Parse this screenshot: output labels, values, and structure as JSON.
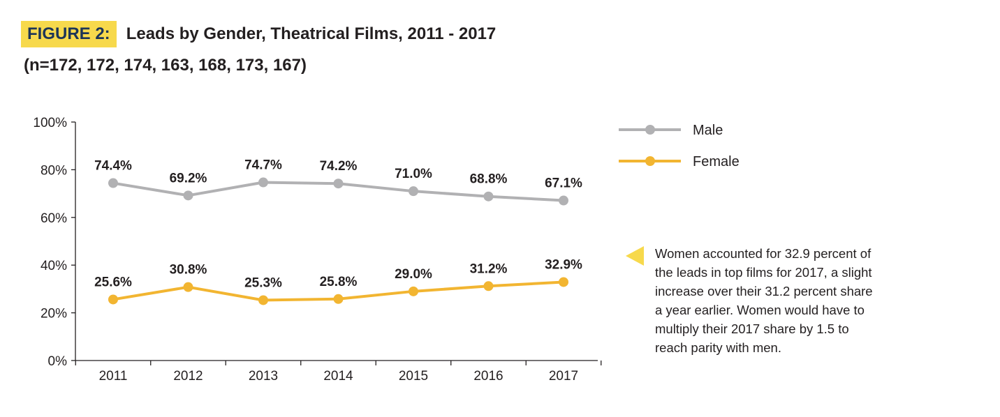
{
  "header": {
    "figure_label": "FIGURE 2:",
    "title": "Leads by Gender, Theatrical Films, 2011 - 2017",
    "subtitle": "(n=172, 172, 174, 163, 168, 173, 167)"
  },
  "note": {
    "text": "Women accounted for 32.9 percent of the leads in top films for 2017, a slight increase over their 31.2 percent share a year earlier. Women would have to multiply their 2017 share by 1.5 to reach parity with men."
  },
  "colors": {
    "male": "#b1b1b3",
    "female": "#f2b531",
    "accent": "#f7d94c",
    "axis": "#231f20"
  },
  "chart_data": {
    "type": "line",
    "categories": [
      "2011",
      "2012",
      "2013",
      "2014",
      "2015",
      "2016",
      "2017"
    ],
    "ylim": [
      0,
      100
    ],
    "yticks": [
      "0%",
      "20%",
      "40%",
      "60%",
      "80%",
      "100%"
    ],
    "grid": false,
    "legend_position": "top-right",
    "series": [
      {
        "name": "Male",
        "values": [
          74.4,
          69.2,
          74.7,
          74.2,
          71.0,
          68.8,
          67.1
        ],
        "labels": [
          "74.4%",
          "69.2%",
          "74.7%",
          "74.2%",
          "71.0%",
          "68.8%",
          "67.1%"
        ]
      },
      {
        "name": "Female",
        "values": [
          25.6,
          30.8,
          25.3,
          25.8,
          29.0,
          31.2,
          32.9
        ],
        "labels": [
          "25.6%",
          "30.8%",
          "25.3%",
          "25.8%",
          "29.0%",
          "31.2%",
          "32.9%"
        ]
      }
    ]
  }
}
